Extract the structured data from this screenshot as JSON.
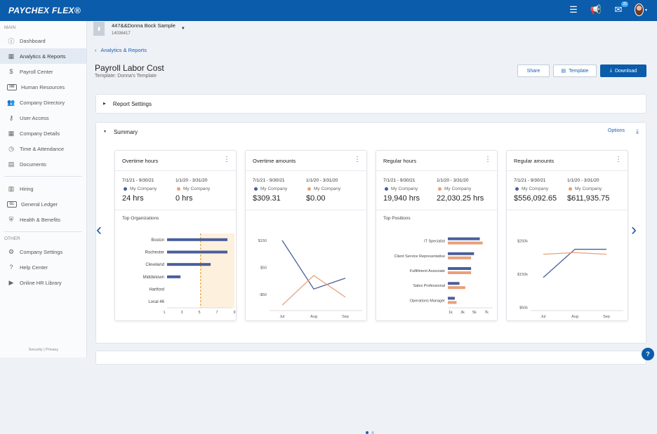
{
  "app": {
    "logo": "PAYCHEX FLEX®",
    "notification_count": "25"
  },
  "sidebar": {
    "main_label": "MAIN",
    "main_items": [
      {
        "label": "Dashboard",
        "icon": "info-circle-icon"
      },
      {
        "label": "Analytics & Reports",
        "icon": "analytics-icon"
      },
      {
        "label": "Payroll Center",
        "icon": "dollar-icon"
      },
      {
        "label": "Human Resources",
        "icon": "hr-icon"
      },
      {
        "label": "Company Directory",
        "icon": "people-icon"
      },
      {
        "label": "User Access",
        "icon": "user-access-icon"
      },
      {
        "label": "Company Details",
        "icon": "building-icon"
      },
      {
        "label": "Time & Attendance",
        "icon": "clock-icon"
      },
      {
        "label": "Documents",
        "icon": "document-icon"
      }
    ],
    "secondary_items": [
      {
        "label": "Hiring",
        "icon": "hiring-icon"
      },
      {
        "label": "General Ledger",
        "icon": "gl-icon"
      },
      {
        "label": "Health & Benefits",
        "icon": "shield-icon"
      }
    ],
    "other_label": "OTHER",
    "other_items": [
      {
        "label": "Company Settings",
        "icon": "gear-icon"
      },
      {
        "label": "Help Center",
        "icon": "help-icon"
      },
      {
        "label": "Online HR Library",
        "icon": "play-icon"
      }
    ],
    "footer": "Security | Privacy"
  },
  "header": {
    "company_name": "447&&Donna Bock Sample",
    "company_id": "14036417",
    "breadcrumb": "Analytics & Reports",
    "title": "Payroll Labor Cost",
    "subtitle": "Template: Donna's Template",
    "share_label": "Share",
    "template_label": "Template",
    "download_label": "Download"
  },
  "report_settings": {
    "label": "Report Settings"
  },
  "summary": {
    "label": "Summary",
    "options_label": "Options",
    "period_a": "7/1/21 - 9/30/21",
    "period_b": "1/1/20 - 3/31/20",
    "legend_label": "My Company",
    "color_a": "#4a5f9a",
    "color_b": "#e8a07a",
    "cards": [
      {
        "title": "Overtime hours",
        "value_a": "24 hrs",
        "value_b": "0 hrs",
        "chart_data": {
          "type": "bar",
          "title": "Top Organizations",
          "orientation": "horizontal",
          "categories": [
            "Boston",
            "Rochester",
            "Cleveland",
            "Middletown",
            "Hartford",
            "Local 46"
          ],
          "series": [
            {
              "values": [
                9,
                9,
                6.5,
                2,
                0,
                0
              ]
            },
            {
              "values": [
                0,
                0,
                0,
                0,
                0,
                0
              ]
            }
          ],
          "xticks": [
            "1",
            "3",
            "5",
            "7",
            "9"
          ],
          "reference_line": 5
        }
      },
      {
        "title": "Overtime amounts",
        "value_a": "$309.31",
        "value_b": "$0.00",
        "chart_data": {
          "type": "line",
          "categories": [
            "Jul",
            "Aug",
            "Sep"
          ],
          "yticks": [
            "$150",
            "$50",
            "-$50"
          ],
          "series": [
            {
              "values": [
                150,
                -30,
                10
              ]
            },
            {
              "values": [
                -90,
                20,
                -60
              ]
            }
          ]
        }
      },
      {
        "title": "Regular hours",
        "value_a": "19,940 hrs",
        "value_b": "22,030.25 hrs",
        "chart_data": {
          "type": "bar",
          "title": "Top Positions",
          "orientation": "horizontal",
          "categories": [
            "IT Specialist",
            "Client Service Representative",
            "Fulfillment Associate",
            "Sales Professional",
            "Operations Manager"
          ],
          "series": [
            {
              "values": [
                5500,
                4500,
                4000,
                2000,
                1200
              ]
            },
            {
              "values": [
                6000,
                4000,
                4000,
                3000,
                1500
              ]
            }
          ],
          "xticks": [
            "1k",
            "3k",
            "5k",
            "7k"
          ]
        }
      },
      {
        "title": "Regular amounts",
        "value_a": "$556,092.65",
        "value_b": "$611,935.75",
        "chart_data": {
          "type": "line",
          "categories": [
            "Jul",
            "Aug",
            "Sep"
          ],
          "yticks": [
            "$250k",
            "$150k",
            "$50k"
          ],
          "series": [
            {
              "values": [
                140000,
                225000,
                225000
              ]
            },
            {
              "values": [
                210000,
                215000,
                210000
              ]
            }
          ]
        }
      }
    ]
  }
}
